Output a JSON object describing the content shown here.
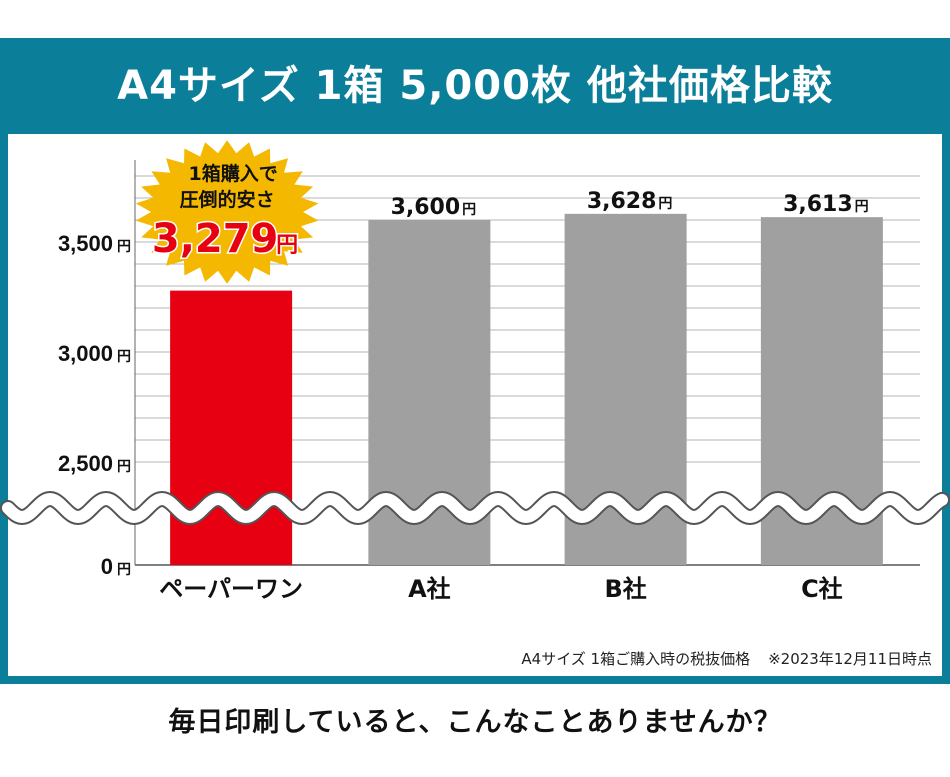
{
  "title": "A4サイズ 1箱 5,000枚 他社価格比較",
  "footnote": {
    "condition": "A4サイズ 1箱ご購入時の税抜価格",
    "date": "※2023年12月11日時点"
  },
  "bottom_text": "毎日印刷していると、こんなことありませんか？",
  "colors": {
    "frame": "#0b7e99",
    "highlight_bar": "#e60012",
    "other_bar": "#a0a0a0",
    "badge": "#f5b800",
    "badge_price": "#e60012"
  },
  "badge": {
    "line1": "1箱購入で",
    "line2": "圧倒的安さ",
    "price": "3,279",
    "unit": "円"
  },
  "chart_data": {
    "type": "bar",
    "categories": [
      "ペーパーワン",
      "A社",
      "B社",
      "C社"
    ],
    "values": [
      3279,
      3600,
      3628,
      3613
    ],
    "value_labels": [
      "3,279",
      "3,600",
      "3,628",
      "3,613"
    ],
    "unit": "円",
    "y_ticks": [
      {
        "value": 0,
        "label": "0"
      },
      {
        "value": 2500,
        "label": "2,500"
      },
      {
        "value": 3000,
        "label": "3,000"
      },
      {
        "value": 3500,
        "label": "3,500"
      }
    ],
    "axis_break": true,
    "ylim": [
      2500,
      3800
    ],
    "grid": true,
    "title": "",
    "xlabel": "",
    "ylabel": ""
  }
}
